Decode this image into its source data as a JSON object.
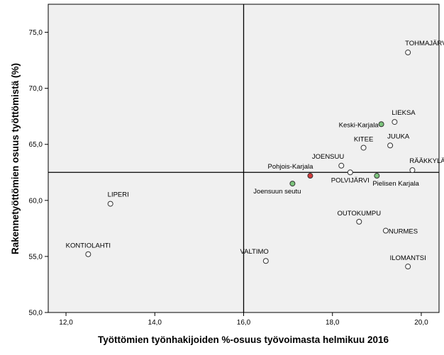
{
  "chart_data": {
    "type": "scatter",
    "title": "",
    "xlabel": "Työttömien työnhakijoiden %-osuus työvoimasta helmikuu 2016",
    "ylabel": "Rakennetyöttömien osuus työttömistä (%)",
    "xlim": [
      11.6,
      20.4
    ],
    "ylim": [
      50.0,
      77.5
    ],
    "xticks": [
      "12,0",
      "14,0",
      "16,0",
      "18,0",
      "20,0"
    ],
    "xtick_values": [
      12,
      14,
      16,
      18,
      20
    ],
    "yticks": [
      "50,0",
      "55,0",
      "60,0",
      "65,0",
      "70,0",
      "75,0"
    ],
    "ytick_values": [
      50,
      55,
      60,
      65,
      70,
      75
    ],
    "grid": false,
    "reference_lines": {
      "x": 16.0,
      "y": 62.5
    },
    "colors": {
      "plot_background": "#f0f0f0",
      "marker_default": "#ffffff",
      "marker_highlight_green": "#7cc47c",
      "marker_highlight_red": "#d23a3a",
      "marker_edge": "#333333"
    },
    "points": [
      {
        "label": "TOHMAJÄRVI",
        "x": 19.7,
        "y": 73.2,
        "color": "#ffffff",
        "anchor": "above-right"
      },
      {
        "label": "LIEKSA",
        "x": 19.4,
        "y": 67.0,
        "color": "#ffffff",
        "anchor": "above-right"
      },
      {
        "label": "Keski-Karjala",
        "x": 19.1,
        "y": 66.8,
        "color": "#7cc47c",
        "anchor": "left"
      },
      {
        "label": "JUUKA",
        "x": 19.3,
        "y": 64.9,
        "color": "#ffffff",
        "anchor": "above-right"
      },
      {
        "label": "KITEE",
        "x": 18.7,
        "y": 64.7,
        "color": "#ffffff",
        "anchor": "above"
      },
      {
        "label": "RÄÄKKYLÄ",
        "x": 19.8,
        "y": 62.7,
        "color": "#ffffff",
        "anchor": "above-right"
      },
      {
        "label": "JOENSUU",
        "x": 18.2,
        "y": 63.1,
        "color": "#ffffff",
        "anchor": "above-left"
      },
      {
        "label": "Pohjois-Karjala",
        "x": 17.5,
        "y": 62.2,
        "color": "#d23a3a",
        "anchor": "above-left"
      },
      {
        "label": "POLVIJÄRVI",
        "x": 18.4,
        "y": 62.5,
        "color": "#ffffff",
        "anchor": "below"
      },
      {
        "label": "Pielisen Karjala",
        "x": 19.0,
        "y": 62.2,
        "color": "#7cc47c",
        "anchor": "below-right"
      },
      {
        "label": "Joensuun seutu",
        "x": 17.1,
        "y": 61.5,
        "color": "#7cc47c",
        "anchor": "below-left"
      },
      {
        "label": "LIPERI",
        "x": 13.0,
        "y": 59.7,
        "color": "#ffffff",
        "anchor": "above-right"
      },
      {
        "label": "OUTOKUMPU",
        "x": 18.6,
        "y": 58.1,
        "color": "#ffffff",
        "anchor": "above"
      },
      {
        "label": "NURMES",
        "x": 19.2,
        "y": 57.3,
        "color": "#ffffff",
        "anchor": "right"
      },
      {
        "label": "KONTIOLAHTI",
        "x": 12.5,
        "y": 55.2,
        "color": "#ffffff",
        "anchor": "above"
      },
      {
        "label": "VALTIMO",
        "x": 16.5,
        "y": 54.6,
        "color": "#ffffff",
        "anchor": "above-left"
      },
      {
        "label": "ILOMANTSI",
        "x": 19.7,
        "y": 54.1,
        "color": "#ffffff",
        "anchor": "above"
      }
    ]
  }
}
